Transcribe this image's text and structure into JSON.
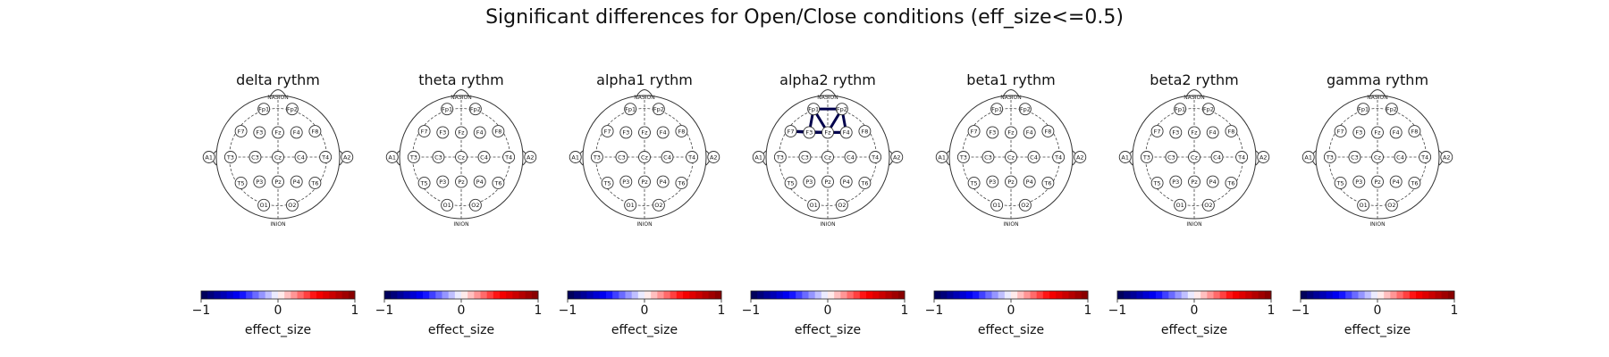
{
  "title": "Significant differences for Open/Close conditions (eff_size<=0.5)",
  "head_labels": {
    "top": "NASION",
    "bottom": "INION"
  },
  "electrodes": [
    "Fp1",
    "Fp2",
    "F7",
    "F3",
    "Fz",
    "F4",
    "F8",
    "A1",
    "T3",
    "C3",
    "Cz",
    "C4",
    "T4",
    "A2",
    "T5",
    "P3",
    "Pz",
    "P4",
    "T6",
    "O1",
    "O2"
  ],
  "colorbar": {
    "label": "effect_size",
    "ticks": [
      "−1",
      "0",
      "1"
    ],
    "range": [
      -1,
      1
    ],
    "colormap": "seismic"
  },
  "panels": [
    {
      "title": "delta rythm",
      "connections": []
    },
    {
      "title": "theta rythm",
      "connections": []
    },
    {
      "title": "alpha1 rythm",
      "connections": []
    },
    {
      "title": "alpha2 rythm",
      "connections": [
        {
          "from": "F7",
          "to": "F3",
          "effect_size": -1
        },
        {
          "from": "F7",
          "to": "Fz",
          "effect_size": -1
        },
        {
          "from": "F3",
          "to": "Fz",
          "effect_size": -1
        },
        {
          "from": "F3",
          "to": "F4",
          "effect_size": -1
        },
        {
          "from": "Fz",
          "to": "F4",
          "effect_size": -1
        },
        {
          "from": "Fz",
          "to": "Fp1",
          "effect_size": -1
        },
        {
          "from": "F3",
          "to": "Fp1",
          "effect_size": -1
        },
        {
          "from": "F4",
          "to": "Fp2",
          "effect_size": -1
        },
        {
          "from": "Fz",
          "to": "Fp2",
          "effect_size": -1
        },
        {
          "from": "Fp1",
          "to": "Fp2",
          "effect_size": -1
        }
      ]
    },
    {
      "title": "beta1 rythm",
      "connections": []
    },
    {
      "title": "beta2 rythm",
      "connections": []
    },
    {
      "title": "gamma rythm",
      "connections": []
    }
  ]
}
